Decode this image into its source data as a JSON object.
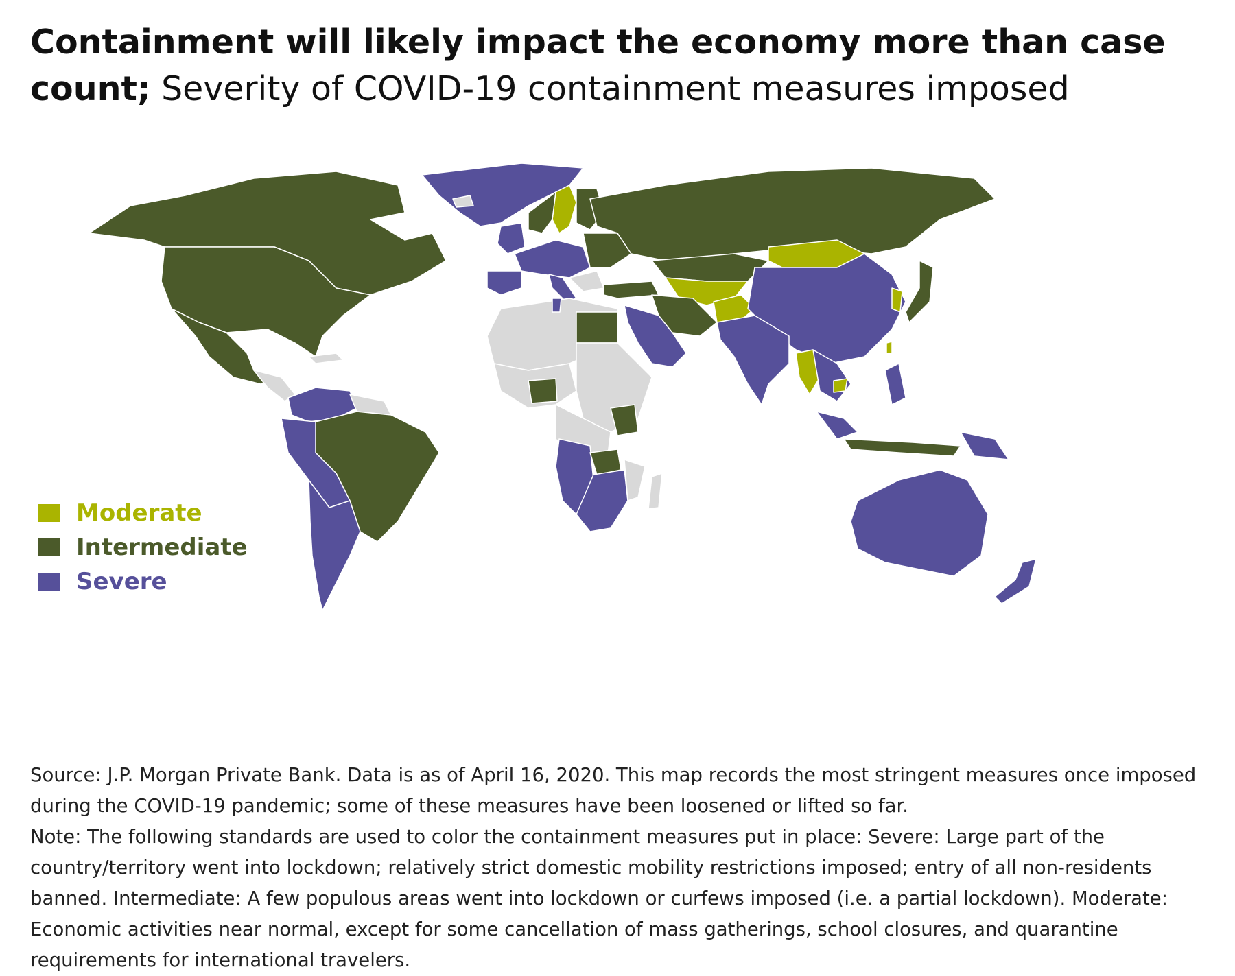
{
  "title": {
    "bold": "Containment will likely impact the economy more than case count;",
    "regular": "Severity of COVID-19 containment measures imposed"
  },
  "colors": {
    "moderate": "#aab400",
    "intermediate": "#4b5a2a",
    "severe": "#56509a",
    "no_data": "#d9d9d9",
    "border": "#ffffff"
  },
  "legend": [
    {
      "label": "Moderate",
      "color": "#aab400"
    },
    {
      "label": "Intermediate",
      "color": "#4b5a2a"
    },
    {
      "label": "Severe",
      "color": "#56509a"
    }
  ],
  "map_regions": {
    "moderate": [
      "Sweden",
      "Mongolia",
      "Kazakhstan area",
      "Afghanistan",
      "Myanmar",
      "Cambodia",
      "Taiwan",
      "South Korea"
    ],
    "intermediate": [
      "Canada",
      "United States",
      "Mexico",
      "Brazil",
      "Russia",
      "Iran",
      "Turkey",
      "Egypt",
      "Nigeria",
      "Kenya",
      "Zambia",
      "Finland",
      "Poland",
      "Japan",
      "Indonesia"
    ],
    "severe": [
      "Greenland",
      "Colombia",
      "Venezuela",
      "Peru",
      "Bolivia",
      "Chile",
      "Argentina",
      "United Kingdom",
      "France",
      "Spain",
      "Italy",
      "Saudi Arabia",
      "India",
      "China",
      "Pakistan",
      "Thailand",
      "Malaysia",
      "Philippines",
      "Australia",
      "New Zealand",
      "South Africa",
      "Namibia",
      "Angola",
      "Papua New Guinea"
    ]
  },
  "footnote": {
    "source": "Source: J.P. Morgan Private Bank. Data is as of April 16, 2020. This map records the most stringent measures once imposed during the COVID-19 pandemic; some of these measures have been loosened or lifted so far.",
    "note": "Note: The following standards are used to color the containment measures put in place: Severe: Large part of the country/territory went into lockdown; relatively strict domestic mobility restrictions imposed; entry of all non-residents banned. Intermediate: A few populous areas went into lockdown or curfews imposed (i.e. a partial lockdown). Moderate: Economic activities near normal, except for some cancellation of mass gatherings, school closures, and quarantine requirements for international travelers."
  }
}
